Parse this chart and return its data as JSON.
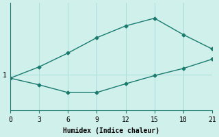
{
  "xlabel": "Humidex (Indice chaleur)",
  "bg_color": "#cff0eb",
  "line_color": "#1a7a6e",
  "grid_color": "#aaddd8",
  "upper_x": [
    0,
    3,
    6,
    9,
    12,
    15,
    18,
    21
  ],
  "upper_y": [
    0.93,
    1.15,
    1.42,
    1.72,
    1.95,
    2.1,
    1.78,
    1.5
  ],
  "lower_x": [
    0,
    3,
    6,
    9,
    12,
    15,
    18,
    21
  ],
  "lower_y": [
    0.93,
    0.8,
    0.65,
    0.65,
    0.82,
    0.98,
    1.12,
    1.3
  ],
  "xlim": [
    0,
    21
  ],
  "ylim": [
    0.3,
    2.4
  ],
  "xticks": [
    0,
    3,
    6,
    9,
    12,
    15,
    18,
    21
  ],
  "ytick_val": 1.0,
  "ytick_label": "1",
  "marker": "D",
  "markersize": 2.5,
  "linewidth": 1.0,
  "xlabel_fontsize": 7,
  "tick_fontsize": 7
}
